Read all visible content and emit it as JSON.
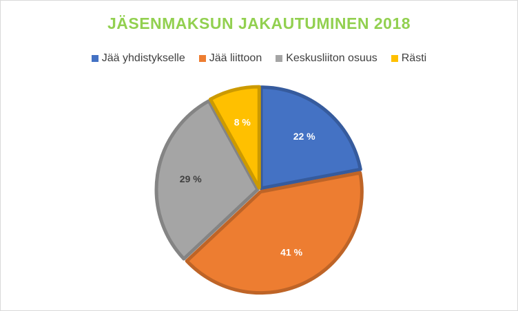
{
  "chart_data": {
    "type": "pie",
    "title": "JÄSENMAKSUN JAKAUTUMINEN 2018",
    "legend_position": "top",
    "slices": [
      {
        "name": "Jää yhdistykselle",
        "value": 22,
        "label": "22 %",
        "color": "#4472c4",
        "label_color": "#ffffff"
      },
      {
        "name": "Jää liittoon",
        "value": 41,
        "label": "41 %",
        "color": "#ed7d31",
        "label_color": "#ffffff"
      },
      {
        "name": "Keskusliiton osuus",
        "value": 29,
        "label": "29 %",
        "color": "#a5a5a5",
        "label_color": "#404040"
      },
      {
        "name": "Rästi",
        "value": 8,
        "label": "8 %",
        "color": "#ffc000",
        "label_color": "#ffffff"
      }
    ]
  }
}
